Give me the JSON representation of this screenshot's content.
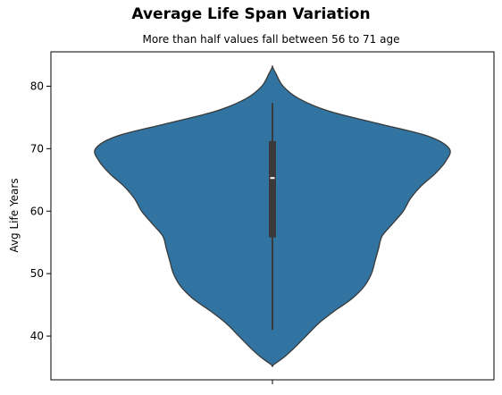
{
  "chart_data": {
    "type": "violin",
    "title": "Average Life Span Variation",
    "subtitle": "More than half values fall between 56 to 71 age",
    "xlabel": "",
    "ylabel": "Avg Life Years",
    "ylim": [
      33,
      85.5
    ],
    "yticks": [
      40,
      50,
      60,
      70,
      80
    ],
    "violin_color": "#3274a1",
    "outline_color": "#3a3a3a",
    "box_color": "#3a3a3a",
    "median_color": "#ffffff",
    "summary": {
      "min": 41,
      "q1": 55.8,
      "median": 65.3,
      "q3": 71.2,
      "max": 77.3,
      "kde_low": 35.3,
      "kde_high": 83.1
    },
    "density_profile": [
      [
        35.3,
        0.0
      ],
      [
        36.5,
        0.06
      ],
      [
        38.0,
        0.12
      ],
      [
        40.0,
        0.19
      ],
      [
        42.0,
        0.26
      ],
      [
        44.0,
        0.35
      ],
      [
        46.0,
        0.45
      ],
      [
        48.0,
        0.52
      ],
      [
        50.0,
        0.56
      ],
      [
        52.0,
        0.58
      ],
      [
        54.0,
        0.6
      ],
      [
        56.0,
        0.62
      ],
      [
        58.0,
        0.68
      ],
      [
        60.0,
        0.74
      ],
      [
        62.0,
        0.78
      ],
      [
        64.0,
        0.84
      ],
      [
        66.0,
        0.92
      ],
      [
        68.0,
        0.98
      ],
      [
        70.0,
        1.0
      ],
      [
        72.0,
        0.88
      ],
      [
        74.0,
        0.6
      ],
      [
        76.0,
        0.32
      ],
      [
        78.0,
        0.15
      ],
      [
        80.0,
        0.06
      ],
      [
        82.0,
        0.02
      ],
      [
        83.1,
        0.0
      ]
    ]
  }
}
